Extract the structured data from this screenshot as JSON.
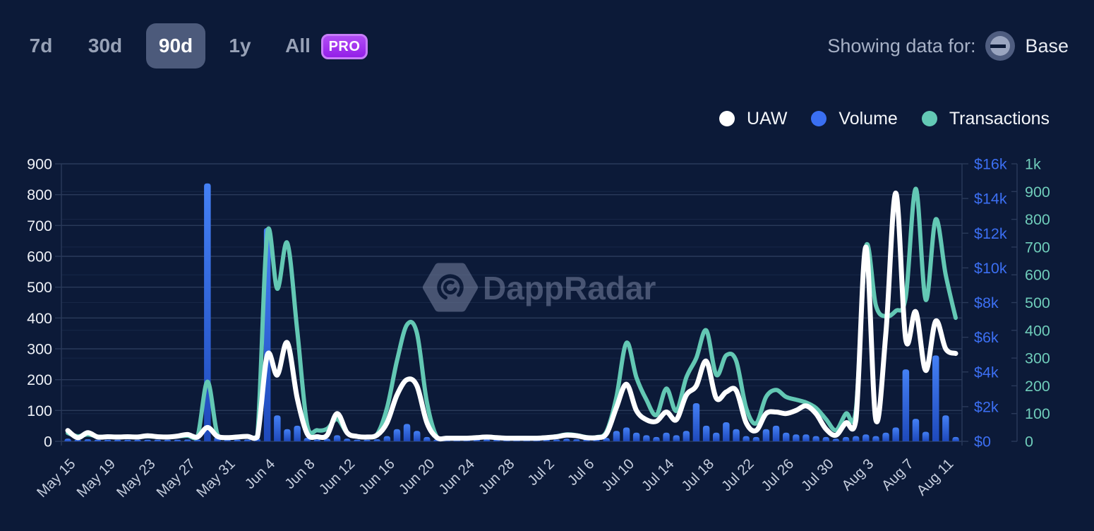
{
  "toolbar": {
    "ranges": [
      {
        "label": "7d",
        "active": false
      },
      {
        "label": "30d",
        "active": false
      },
      {
        "label": "90d",
        "active": true
      },
      {
        "label": "1y",
        "active": false
      },
      {
        "label": "All",
        "active": false
      }
    ],
    "pro_label": "PRO",
    "showing_label": "Showing data for:",
    "network": "Base"
  },
  "legend": [
    {
      "label": "UAW",
      "color": "#ffffff"
    },
    {
      "label": "Volume",
      "color": "#3a6ff2"
    },
    {
      "label": "Transactions",
      "color": "#63c9b5"
    }
  ],
  "watermark": "DappRadar",
  "colors": {
    "background": "#0c1a38",
    "grid_major": "#2a3a5a",
    "grid_minor": "#172747",
    "uaw_line": "#ffffff",
    "transactions_line": "#63c8b4",
    "volume_bar": "#2e5fe0",
    "left_axis_text": "#edf0f6",
    "volume_axis_text": "#3c6ff2",
    "transactions_axis_text": "#6fccba",
    "x_axis_text": "#c5cddd",
    "watermark_text": "#707c99",
    "chip_bg": "#4c5a7b",
    "pro_bg": "#9e2fee"
  },
  "chart_data": {
    "type": "mixed",
    "x": [
      "May 15",
      "May 16",
      "May 17",
      "May 18",
      "May 19",
      "May 20",
      "May 21",
      "May 22",
      "May 23",
      "May 24",
      "May 25",
      "May 26",
      "May 27",
      "May 28",
      "May 29",
      "May 30",
      "May 31",
      "Jun 1",
      "Jun 2",
      "Jun 3",
      "Jun 4",
      "Jun 5",
      "Jun 6",
      "Jun 7",
      "Jun 8",
      "Jun 9",
      "Jun 10",
      "Jun 11",
      "Jun 12",
      "Jun 13",
      "Jun 14",
      "Jun 15",
      "Jun 16",
      "Jun 17",
      "Jun 18",
      "Jun 19",
      "Jun 20",
      "Jun 21",
      "Jun 22",
      "Jun 23",
      "Jun 24",
      "Jun 25",
      "Jun 26",
      "Jun 27",
      "Jun 28",
      "Jun 29",
      "Jun 30",
      "Jul 1",
      "Jul 2",
      "Jul 3",
      "Jul 4",
      "Jul 5",
      "Jul 6",
      "Jul 7",
      "Jul 8",
      "Jul 9",
      "Jul 10",
      "Jul 11",
      "Jul 12",
      "Jul 13",
      "Jul 14",
      "Jul 15",
      "Jul 16",
      "Jul 17",
      "Jul 18",
      "Jul 19",
      "Jul 20",
      "Jul 21",
      "Jul 22",
      "Jul 23",
      "Jul 24",
      "Jul 25",
      "Jul 26",
      "Jul 27",
      "Jul 28",
      "Jul 29",
      "Jul 30",
      "Jul 31",
      "Aug 1",
      "Aug 2",
      "Aug 3",
      "Aug 4",
      "Aug 5",
      "Aug 6",
      "Aug 7",
      "Aug 8",
      "Aug 9",
      "Aug 10",
      "Aug 11",
      "Aug 12"
    ],
    "x_tick_labels": [
      "May 15",
      "May 19",
      "May 23",
      "May 27",
      "May 31",
      "Jun 4",
      "Jun 8",
      "Jun 12",
      "Jun 16",
      "Jun 20",
      "Jun 24",
      "Jun 28",
      "Jul 2",
      "Jul 6",
      "Jul 10",
      "Jul 14",
      "Jul 18",
      "Jul 22",
      "Jul 26",
      "Jul 30",
      "Aug 3",
      "Aug 7",
      "Aug 11"
    ],
    "series": [
      {
        "name": "UAW",
        "type": "line",
        "axis": "left",
        "color": "#ffffff",
        "values": [
          35,
          12,
          28,
          14,
          15,
          14,
          15,
          14,
          18,
          15,
          14,
          17,
          22,
          14,
          45,
          16,
          12,
          14,
          16,
          14,
          280,
          215,
          320,
          140,
          25,
          15,
          20,
          90,
          28,
          16,
          14,
          20,
          60,
          150,
          200,
          180,
          60,
          12,
          10,
          10,
          10,
          12,
          14,
          12,
          10,
          10,
          10,
          10,
          12,
          15,
          20,
          18,
          12,
          12,
          25,
          110,
          185,
          100,
          70,
          65,
          95,
          70,
          150,
          180,
          260,
          140,
          160,
          165,
          60,
          35,
          90,
          95,
          90,
          100,
          115,
          90,
          40,
          20,
          60,
          70,
          630,
          70,
          350,
          805,
          330,
          420,
          230,
          390,
          300,
          285
        ]
      },
      {
        "name": "Volume",
        "type": "bar",
        "axis": "right_volume",
        "color": "#2e5fe0",
        "values": [
          150,
          80,
          120,
          60,
          60,
          60,
          80,
          60,
          90,
          60,
          60,
          80,
          100,
          60,
          14870,
          250,
          100,
          80,
          100,
          150,
          12300,
          1500,
          700,
          900,
          200,
          100,
          150,
          350,
          150,
          80,
          80,
          120,
          300,
          700,
          1000,
          600,
          250,
          80,
          60,
          60,
          80,
          100,
          120,
          80,
          60,
          60,
          60,
          60,
          80,
          100,
          150,
          120,
          80,
          80,
          200,
          600,
          800,
          500,
          350,
          250,
          500,
          350,
          600,
          2200,
          900,
          500,
          1100,
          700,
          300,
          250,
          700,
          900,
          500,
          400,
          400,
          300,
          250,
          150,
          250,
          300,
          400,
          300,
          500,
          800,
          4150,
          1300,
          550,
          4950,
          1500,
          250
        ]
      },
      {
        "name": "Transactions",
        "type": "line",
        "axis": "right_transactions",
        "color": "#63c8b4",
        "values": [
          30,
          18,
          25,
          17,
          16,
          16,
          16,
          16,
          18,
          16,
          16,
          18,
          20,
          16,
          215,
          25,
          14,
          16,
          18,
          20,
          750,
          550,
          715,
          400,
          60,
          40,
          45,
          80,
          30,
          18,
          16,
          25,
          120,
          290,
          420,
          390,
          140,
          15,
          12,
          12,
          12,
          14,
          16,
          14,
          12,
          12,
          12,
          12,
          14,
          18,
          25,
          22,
          15,
          15,
          35,
          160,
          355,
          230,
          150,
          95,
          190,
          110,
          230,
          300,
          400,
          240,
          310,
          290,
          120,
          65,
          160,
          185,
          160,
          150,
          140,
          120,
          80,
          40,
          100,
          115,
          700,
          490,
          450,
          470,
          520,
          910,
          510,
          800,
          600,
          445
        ]
      }
    ],
    "axes": {
      "left": {
        "min": 0,
        "max": 900,
        "ticks": [
          "900",
          "800",
          "700",
          "600",
          "500",
          "400",
          "300",
          "200",
          "100",
          "0"
        ]
      },
      "right_volume": {
        "min": 0,
        "max": 16000,
        "ticks": [
          "$16k",
          "$14k",
          "$12k",
          "$10k",
          "$8k",
          "$6k",
          "$4k",
          "$2k",
          "$0"
        ]
      },
      "right_transactions": {
        "min": 0,
        "max": 1000,
        "ticks": [
          "1k",
          "900",
          "800",
          "700",
          "600",
          "500",
          "400",
          "300",
          "200",
          "100",
          "0"
        ]
      }
    },
    "grid": true,
    "legend_position": "top-right"
  }
}
